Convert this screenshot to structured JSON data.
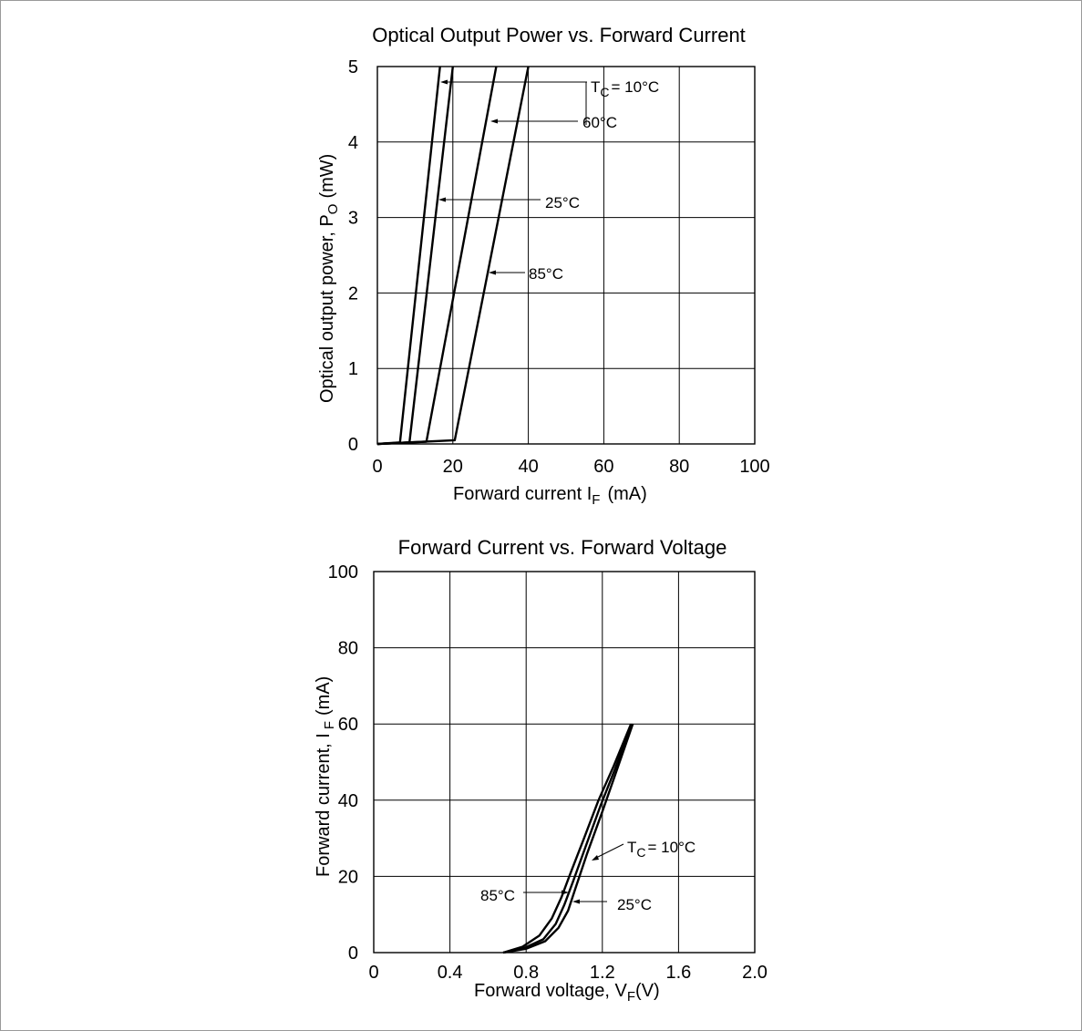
{
  "chart_data": [
    {
      "type": "line",
      "title": "Optical Output Power vs. Forward Current",
      "xlabel": "Forward current I",
      "xlabel_sub": "F",
      "xlabel_unit": "(mA)",
      "ylabel": "Optical output power, P",
      "ylabel_sub": "O",
      "ylabel_unit": "(mW)",
      "xlim": [
        0,
        100
      ],
      "ylim": [
        0,
        5
      ],
      "xticks": [
        "0",
        "20",
        "40",
        "60",
        "80",
        "100"
      ],
      "yticks": [
        "0",
        "1",
        "2",
        "3",
        "4",
        "5"
      ],
      "grid": true,
      "series": [
        {
          "name": "T_C = 10°C",
          "x": [
            0,
            6,
            16.6
          ],
          "y": [
            0,
            0.02,
            5
          ]
        },
        {
          "name": "25°C",
          "x": [
            0,
            8.5,
            20
          ],
          "y": [
            0,
            0.02,
            5
          ]
        },
        {
          "name": "60°C",
          "x": [
            0,
            13,
            31.5
          ],
          "y": [
            0,
            0.03,
            5
          ]
        },
        {
          "name": "85°C",
          "x": [
            0,
            20.5,
            40
          ],
          "y": [
            0,
            0.05,
            5
          ]
        }
      ],
      "annotations": [
        {
          "label": "T",
          "sub": "C",
          "suffix": "= 10°C"
        },
        {
          "label": "60°C"
        },
        {
          "label": "25°C"
        },
        {
          "label": "85°C"
        }
      ]
    },
    {
      "type": "line",
      "title": "Forward Current vs. Forward Voltage",
      "xlabel": "Forward voltage, V",
      "xlabel_sub": "F",
      "xlabel_unit": "(V)",
      "ylabel": "Forward current, I",
      "ylabel_sub": "F",
      "ylabel_unit": "(mA)",
      "xlim": [
        0,
        2.0
      ],
      "ylim": [
        0,
        100
      ],
      "xticks": [
        "0",
        "0.4",
        "0.8",
        "1.2",
        "1.6",
        "2.0"
      ],
      "yticks": [
        "0",
        "20",
        "40",
        "60",
        "80",
        "100"
      ],
      "grid": true,
      "series": [
        {
          "name": "T_C = 10°C",
          "x": [
            0.68,
            0.8,
            0.9,
            0.97,
            1.02,
            1.06,
            1.12,
            1.2,
            1.27,
            1.36
          ],
          "y": [
            0,
            1,
            3,
            6.5,
            11,
            17,
            26,
            37,
            47,
            60
          ]
        },
        {
          "name": "25°C",
          "x": [
            0.68,
            0.79,
            0.89,
            0.955,
            1.0,
            1.045,
            1.11,
            1.19,
            1.265,
            1.355
          ],
          "y": [
            0,
            1.2,
            3.5,
            7.5,
            12.5,
            18.5,
            27.5,
            38.5,
            48,
            60
          ]
        },
        {
          "name": "85°C",
          "x": [
            0.68,
            0.78,
            0.87,
            0.935,
            0.985,
            1.03,
            1.1,
            1.18,
            1.26,
            1.35
          ],
          "y": [
            0,
            1.5,
            4.5,
            9,
            14.5,
            20.5,
            29.5,
            40,
            49,
            60
          ]
        }
      ],
      "annotations": [
        {
          "label": "T",
          "sub": "C",
          "suffix": "= 10°C"
        },
        {
          "label": "85°C"
        },
        {
          "label": "25°C"
        }
      ]
    }
  ]
}
